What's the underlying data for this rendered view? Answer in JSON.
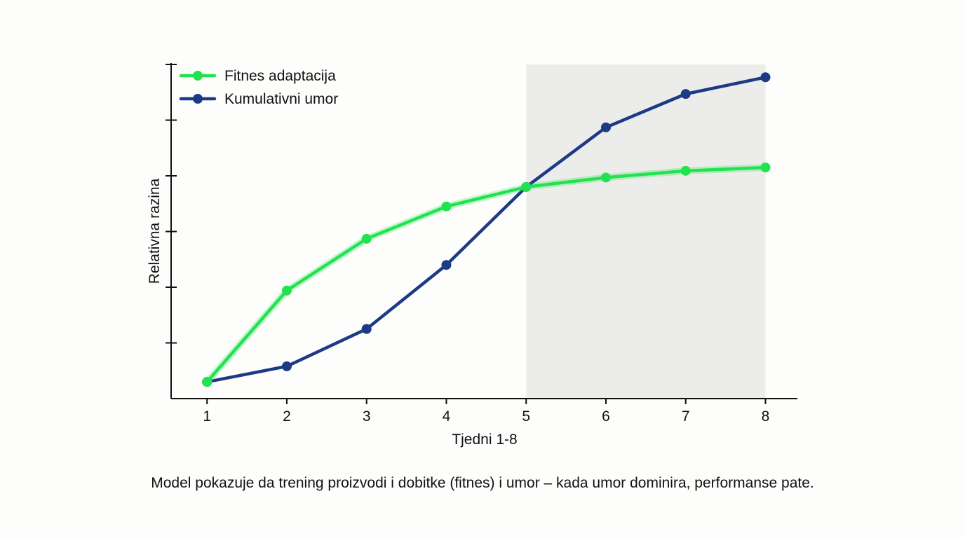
{
  "chart_data": {
    "type": "line",
    "title": "",
    "xlabel": "Tjedni 1-8",
    "ylabel": "Relativna razina",
    "x": [
      1,
      2,
      3,
      4,
      5,
      6,
      7,
      8
    ],
    "xlim": [
      0.55,
      8.4
    ],
    "ylim": [
      0,
      6
    ],
    "y_ticks": [
      1,
      2,
      3,
      4,
      5,
      6
    ],
    "highlight_range": [
      5,
      8
    ],
    "highlight_color": "#ececea",
    "legend_position": "top-left",
    "grid": false,
    "series": [
      {
        "name": "Fitnes adaptacija",
        "color": "#22e34f",
        "values": [
          0.3,
          1.94,
          2.87,
          3.45,
          3.8,
          3.97,
          4.09,
          4.15
        ]
      },
      {
        "name": "Kumulativni umor",
        "color": "#1d3a86",
        "values": [
          0.3,
          0.58,
          1.25,
          2.4,
          3.8,
          4.87,
          5.47,
          5.77
        ]
      }
    ]
  },
  "caption": "Model pokazuje da trening proizvodi i dobitke (fitnes) i umor – kada umor dominira, performanse pate."
}
